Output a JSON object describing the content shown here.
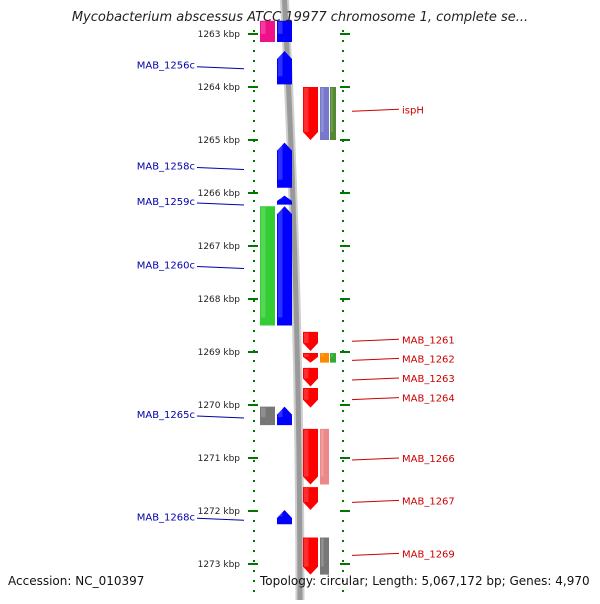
{
  "title": "Mycobacterium abscessus ATCC 19977 chromosome 1, complete se...",
  "footer": {
    "accession": "Accession: NC_010397",
    "topology": "Topology: circular; Length: 5,067,172 bp; Genes: 4,970"
  },
  "colors": {
    "forward_strand": "#0000ff",
    "reverse_strand": "#ff0000",
    "left_label": "#0000aa",
    "right_label": "#cc0000",
    "tick": "#007700",
    "backbone": "#999999"
  },
  "axis": {
    "ticks": [
      {
        "label": "1263 kbp",
        "kbp": 1263
      },
      {
        "label": "1264 kbp",
        "kbp": 1264
      },
      {
        "label": "1265 kbp",
        "kbp": 1265
      },
      {
        "label": "1266 kbp",
        "kbp": 1266
      },
      {
        "label": "1267 kbp",
        "kbp": 1267
      },
      {
        "label": "1268 kbp",
        "kbp": 1268
      },
      {
        "label": "1269 kbp",
        "kbp": 1269
      },
      {
        "label": "1270 kbp",
        "kbp": 1270
      },
      {
        "label": "1271 kbp",
        "kbp": 1271
      },
      {
        "label": "1272 kbp",
        "kbp": 1272
      },
      {
        "label": "1273 kbp",
        "kbp": 1273
      }
    ]
  },
  "left_labels": [
    {
      "text": "MAB_1256c",
      "kbp": 1263.58
    },
    {
      "text": "MAB_1258c",
      "kbp": 1265.48
    },
    {
      "text": "MAB_1259c",
      "kbp": 1266.15
    },
    {
      "text": "MAB_1260c",
      "kbp": 1267.35
    },
    {
      "text": "MAB_1265c",
      "kbp": 1270.17
    },
    {
      "text": "MAB_1268c",
      "kbp": 1272.1
    }
  ],
  "right_labels": [
    {
      "text": "ispH",
      "kbp": 1264.42
    },
    {
      "text": "MAB_1261",
      "kbp": 1268.76
    },
    {
      "text": "MAB_1262",
      "kbp": 1269.12
    },
    {
      "text": "MAB_1263",
      "kbp": 1269.49
    },
    {
      "text": "MAB_1264",
      "kbp": 1269.86
    },
    {
      "text": "MAB_1266",
      "kbp": 1271.0
    },
    {
      "text": "MAB_1267",
      "kbp": 1271.8
    },
    {
      "text": "MAB_1269",
      "kbp": 1272.8
    }
  ],
  "features": [
    {
      "lane": "L1",
      "start": 1262.75,
      "end": 1263.15,
      "color": "#ee1188",
      "arrow": "none"
    },
    {
      "lane": "L2",
      "start": 1262.75,
      "end": 1263.15,
      "color": "#0000ff",
      "arrow": "none"
    },
    {
      "lane": "L2",
      "start": 1263.32,
      "end": 1263.95,
      "color": "#0000ff",
      "arrow": "up"
    },
    {
      "lane": "R1",
      "start": 1264.0,
      "end": 1265.0,
      "color": "#ff0000",
      "arrow": "down"
    },
    {
      "lane": "R2",
      "start": 1264.0,
      "end": 1265.0,
      "color": "#7777cc",
      "arrow": "none"
    },
    {
      "lane": "R3",
      "start": 1264.0,
      "end": 1265.0,
      "color": "#558833",
      "arrow": "none"
    },
    {
      "lane": "L2",
      "start": 1265.05,
      "end": 1265.9,
      "color": "#0000ff",
      "arrow": "up"
    },
    {
      "lane": "L2",
      "start": 1266.05,
      "end": 1266.22,
      "color": "#0000ff",
      "arrow": "up"
    },
    {
      "lane": "L1",
      "start": 1266.25,
      "end": 1268.5,
      "color": "#33cc33",
      "arrow": "none"
    },
    {
      "lane": "L2",
      "start": 1266.25,
      "end": 1268.5,
      "color": "#0000ff",
      "arrow": "up"
    },
    {
      "lane": "R1",
      "start": 1268.62,
      "end": 1268.98,
      "color": "#ff0000",
      "arrow": "down"
    },
    {
      "lane": "R1",
      "start": 1269.02,
      "end": 1269.2,
      "color": "#ff0000",
      "arrow": "down"
    },
    {
      "lane": "R2",
      "start": 1269.02,
      "end": 1269.2,
      "color": "#ff8800",
      "arrow": "none"
    },
    {
      "lane": "R3",
      "start": 1269.02,
      "end": 1269.2,
      "color": "#33aa33",
      "arrow": "none"
    },
    {
      "lane": "R1",
      "start": 1269.3,
      "end": 1269.65,
      "color": "#ff0000",
      "arrow": "down"
    },
    {
      "lane": "R1",
      "start": 1269.68,
      "end": 1270.05,
      "color": "#ff0000",
      "arrow": "down"
    },
    {
      "lane": "L1",
      "start": 1270.03,
      "end": 1270.38,
      "color": "#777777",
      "arrow": "none"
    },
    {
      "lane": "L2",
      "start": 1270.03,
      "end": 1270.38,
      "color": "#0000ff",
      "arrow": "up"
    },
    {
      "lane": "R1",
      "start": 1270.45,
      "end": 1271.5,
      "color": "#ff0000",
      "arrow": "down"
    },
    {
      "lane": "R2",
      "start": 1270.45,
      "end": 1271.5,
      "color": "#ee8888",
      "arrow": "none"
    },
    {
      "lane": "R1",
      "start": 1271.55,
      "end": 1271.98,
      "color": "#ff0000",
      "arrow": "down"
    },
    {
      "lane": "L2",
      "start": 1271.98,
      "end": 1272.25,
      "color": "#0000ff",
      "arrow": "up"
    },
    {
      "lane": "R1",
      "start": 1272.5,
      "end": 1273.2,
      "color": "#ff0000",
      "arrow": "down"
    },
    {
      "lane": "R2",
      "start": 1272.5,
      "end": 1273.2,
      "color": "#777777",
      "arrow": "none"
    }
  ]
}
